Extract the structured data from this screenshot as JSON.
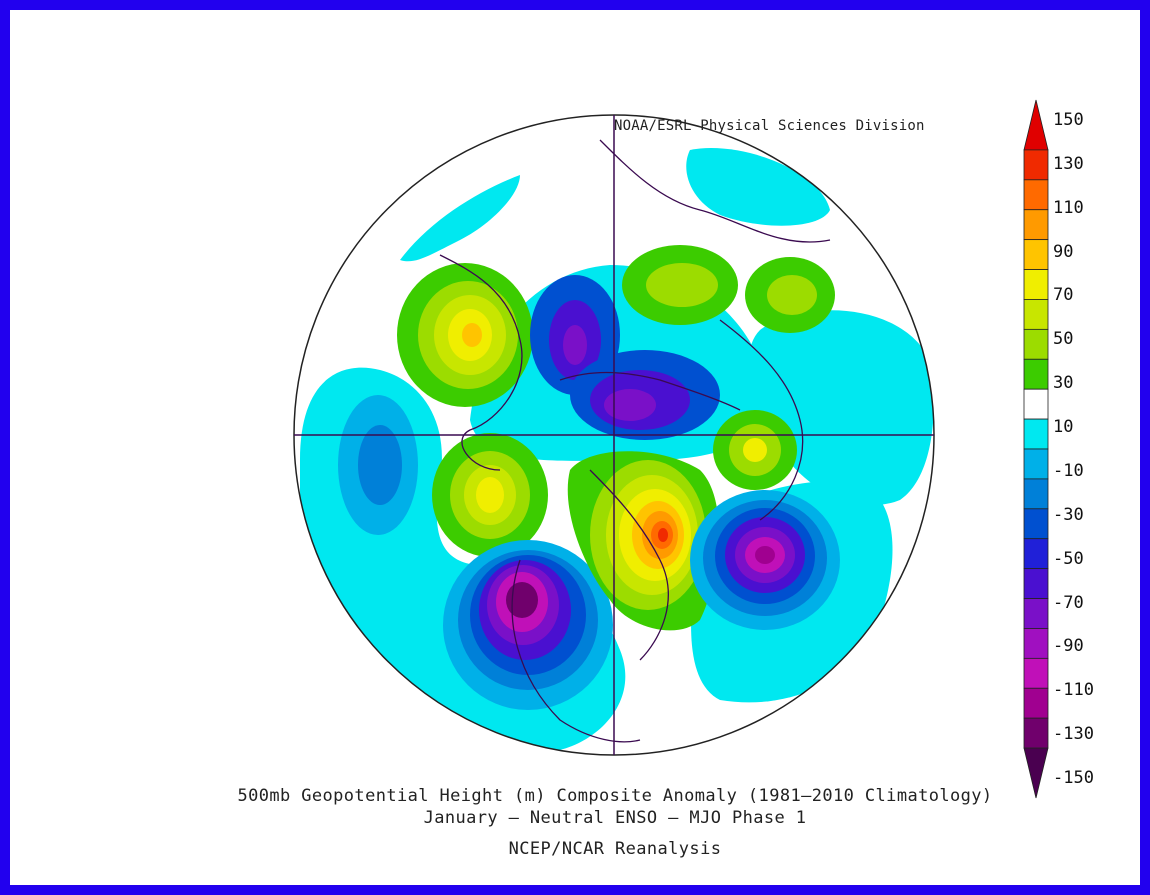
{
  "map": {
    "credit": "NOAA/ESRL Physical Sciences Division",
    "projection": "north-polar-stereographic",
    "variable": "500mb geopotential height anomaly (m)",
    "centers": [
      {
        "name": "ridge-alaska-west-canada",
        "value": 70
      },
      {
        "name": "ridge-north-atlantic-greenland",
        "value": 130
      },
      {
        "name": "ridge-siberia",
        "value": 40
      },
      {
        "name": "ridge-east-asia",
        "value": 70
      },
      {
        "name": "ridge-west-europe",
        "value": 60
      },
      {
        "name": "trough-north-pacific",
        "value": -40
      },
      {
        "name": "trough-eastern-north-america",
        "value": -140
      },
      {
        "name": "trough-western-russia",
        "value": -120
      },
      {
        "name": "trough-arctic",
        "value": -90
      },
      {
        "name": "trough-beaufort",
        "value": -80
      }
    ]
  },
  "colorbar": {
    "levels": [
      "150",
      "130",
      "110",
      "90",
      "70",
      "50",
      "30",
      "10",
      "-10",
      "-30",
      "-50",
      "-70",
      "-90",
      "-110",
      "-130",
      "-150"
    ],
    "colors": [
      "#e00000",
      "#f02a00",
      "#ff6a00",
      "#ff9a00",
      "#ffc400",
      "#f0ee00",
      "#c8e600",
      "#9cdc00",
      "#3ccc00",
      "#ffffff",
      "#00e8f0",
      "#00b0e8",
      "#0080d8",
      "#0050d0",
      "#2020d8",
      "#4a10d0",
      "#7a10c8",
      "#a010c0",
      "#c010b8",
      "#a00090",
      "#70006c",
      "#4a0050"
    ]
  },
  "caption": {
    "line1": "500mb Geopotential Height (m) Composite Anomaly (1981–2010 Climatology)",
    "line2": "January — Neutral ENSO — MJO Phase 1",
    "line3": "NCEP/NCAR Reanalysis"
  }
}
